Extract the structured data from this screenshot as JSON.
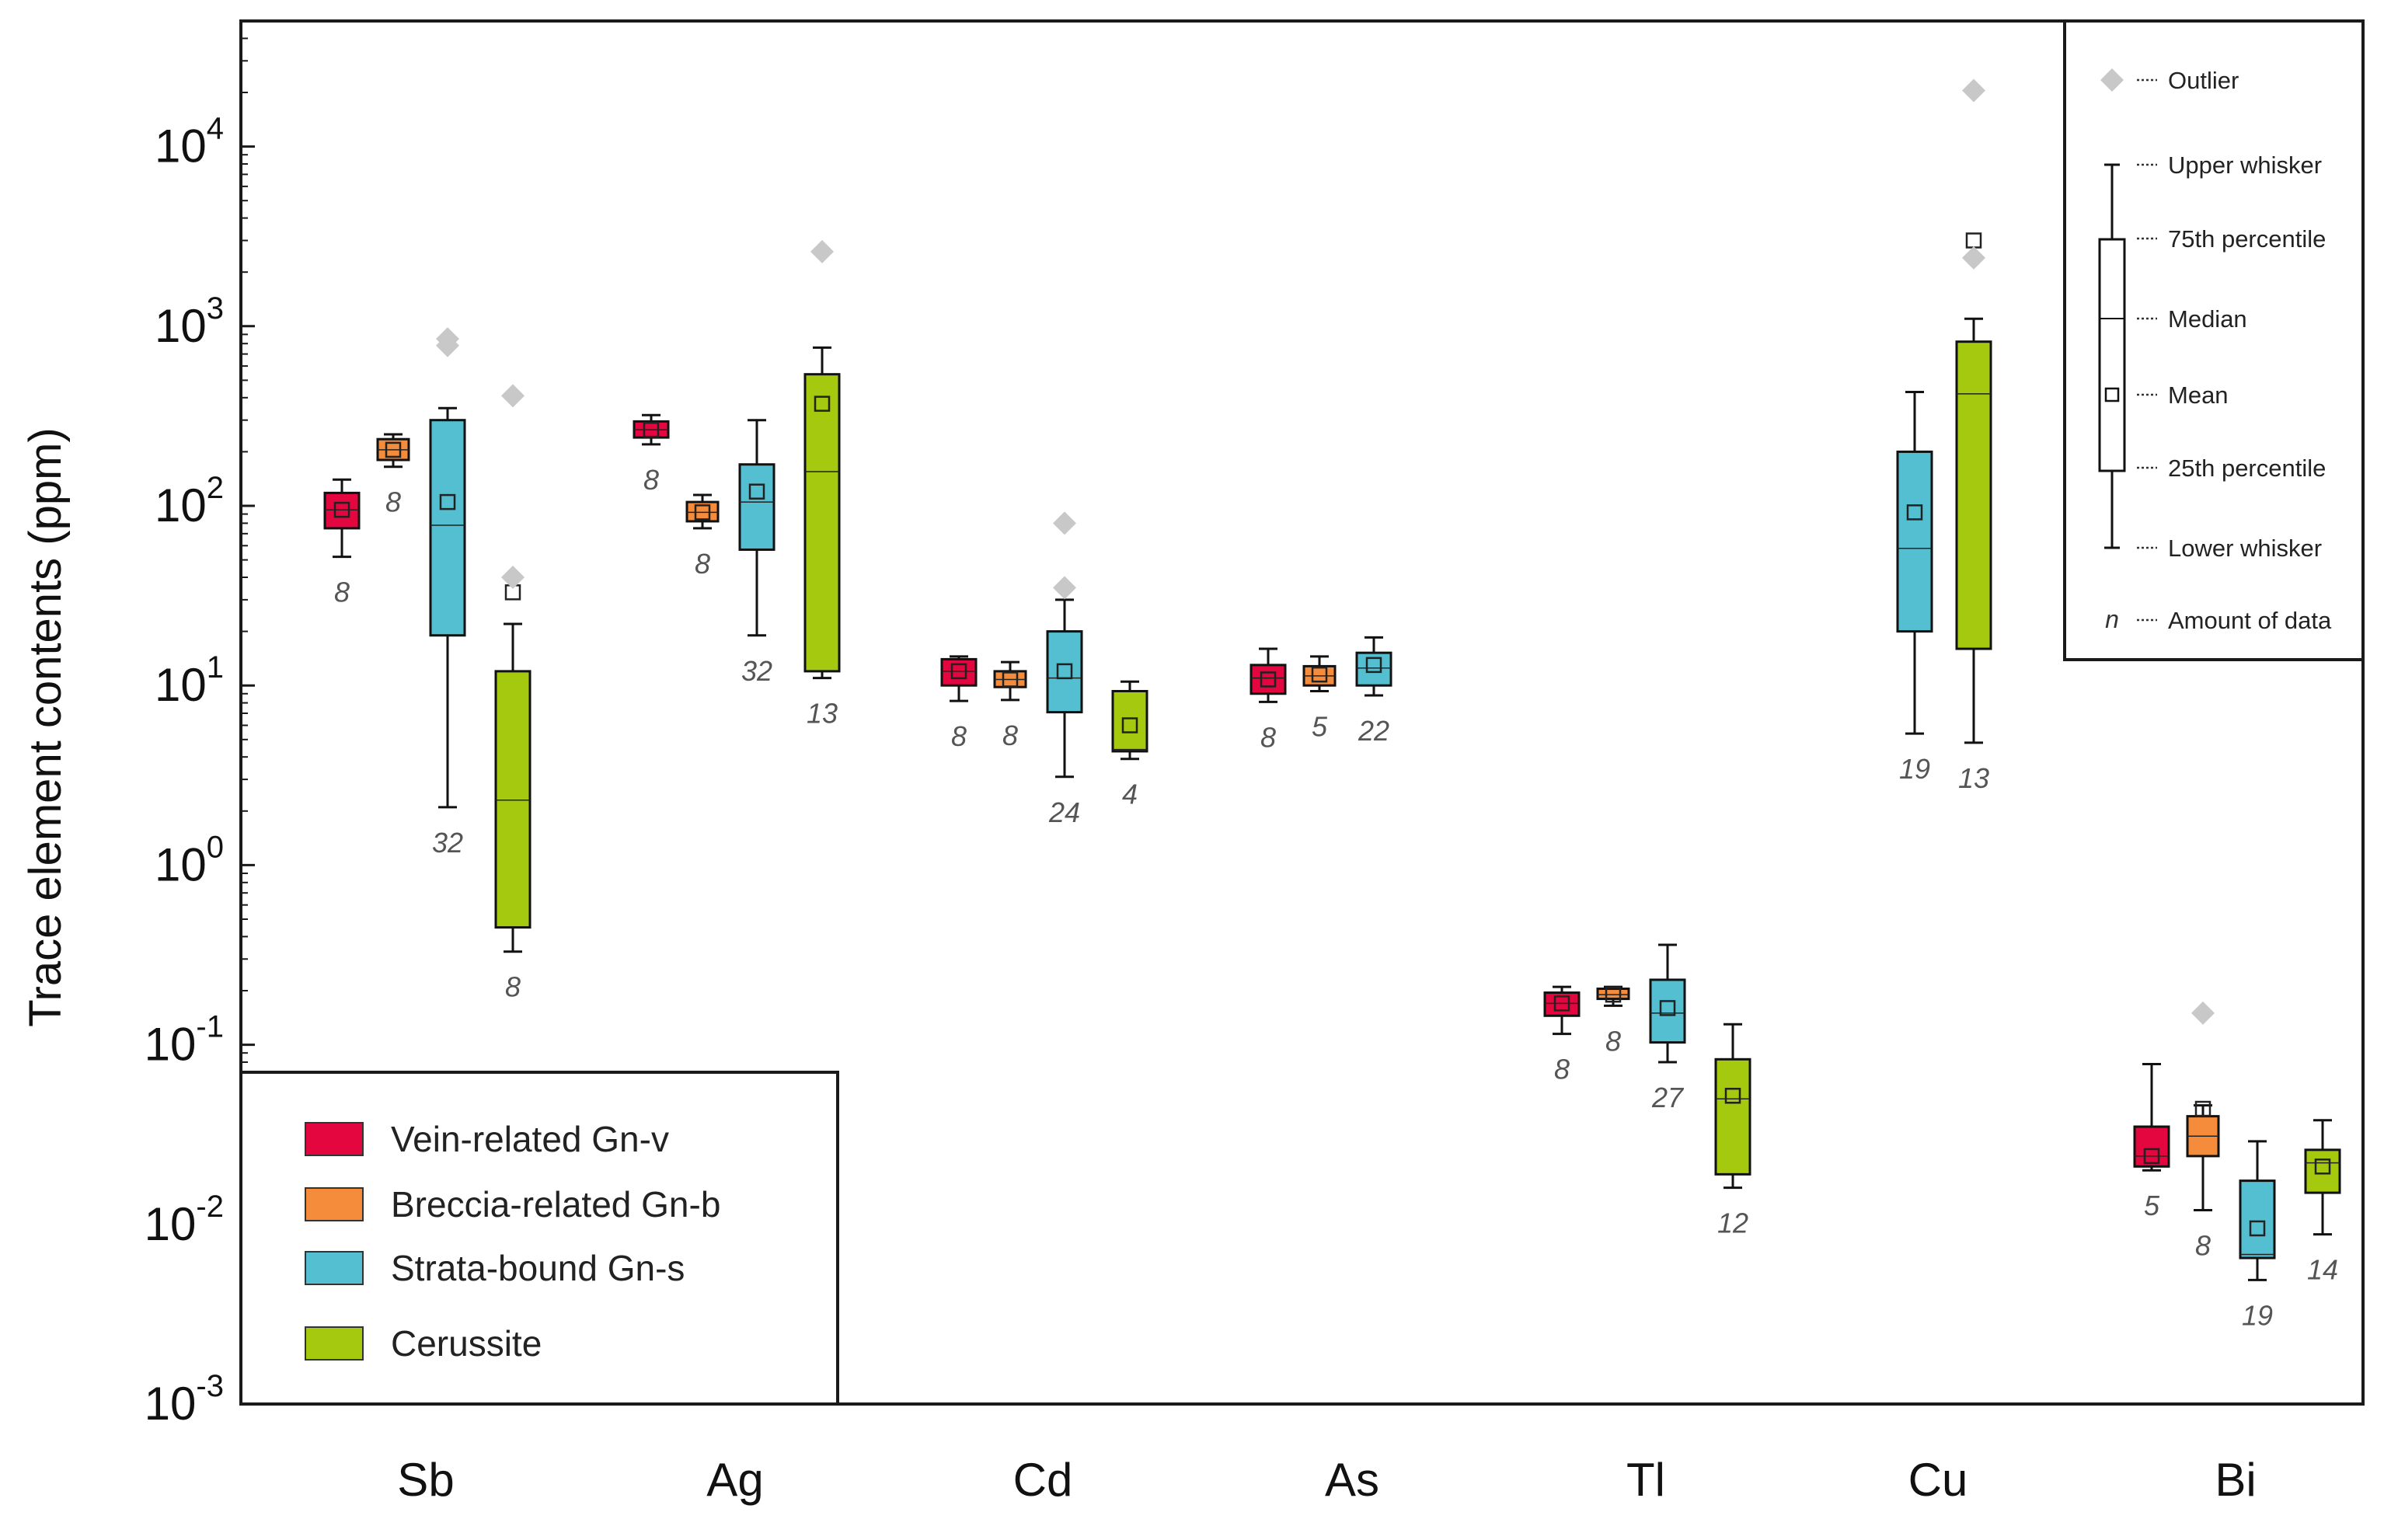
{
  "chart_data": {
    "type": "box",
    "ylabel": "Trace element contents (ppm)",
    "yscale": "log",
    "ylim": [
      0.001,
      50000
    ],
    "y_ticks": [
      {
        "base": "10",
        "exp": "-3",
        "value": 0.001
      },
      {
        "base": "10",
        "exp": "-2",
        "value": 0.01
      },
      {
        "base": "10",
        "exp": "-1",
        "value": 0.1
      },
      {
        "base": "10",
        "exp": "0",
        "value": 1
      },
      {
        "base": "10",
        "exp": "1",
        "value": 10
      },
      {
        "base": "10",
        "exp": "2",
        "value": 100
      },
      {
        "base": "10",
        "exp": "3",
        "value": 1000
      },
      {
        "base": "10",
        "exp": "4",
        "value": 10000
      }
    ],
    "categories": [
      "Sb",
      "Ag",
      "Cd",
      "As",
      "Tl",
      "Cu",
      "Bi"
    ],
    "series": [
      {
        "name": "Vein-related Gn-v",
        "color": "#e3063f"
      },
      {
        "name": "Breccia-related Gn-b",
        "color": "#f58c3c"
      },
      {
        "name": "Strata-bound Gn-s",
        "color": "#54bfd0"
      },
      {
        "name": "Cerussite",
        "color": "#a5c90f"
      }
    ],
    "boxes": [
      {
        "category": "Sb",
        "series": 0,
        "min": 52,
        "q1": 75,
        "median": 95,
        "q3": 118,
        "max": 140,
        "mean": 95,
        "n": "8",
        "outliers": []
      },
      {
        "category": "Sb",
        "series": 1,
        "min": 165,
        "q1": 180,
        "median": 205,
        "q3": 235,
        "max": 250,
        "mean": 205,
        "n": "8",
        "outliers": []
      },
      {
        "category": "Sb",
        "series": 2,
        "min": 2.1,
        "q1": 19,
        "median": 78,
        "q3": 300,
        "max": 350,
        "mean": 105,
        "n": "32",
        "outliers": [
          780,
          850
        ]
      },
      {
        "category": "Sb",
        "series": 3,
        "min": 0.33,
        "q1": 0.45,
        "median": 2.3,
        "q3": 12,
        "max": 22,
        "mean": 33,
        "n": "8",
        "outliers": [
          40,
          410
        ]
      },
      {
        "category": "Ag",
        "series": 0,
        "min": 220,
        "q1": 240,
        "median": 265,
        "q3": 295,
        "max": 320,
        "mean": 265,
        "n": "8",
        "outliers": []
      },
      {
        "category": "Ag",
        "series": 1,
        "min": 75,
        "q1": 82,
        "median": 92,
        "q3": 105,
        "max": 115,
        "mean": 92,
        "n": "8",
        "outliers": []
      },
      {
        "category": "Ag",
        "series": 2,
        "min": 19,
        "q1": 57,
        "median": 105,
        "q3": 170,
        "max": 300,
        "mean": 120,
        "n": "32",
        "outliers": []
      },
      {
        "category": "Ag",
        "series": 3,
        "min": 11,
        "q1": 12,
        "median": 155,
        "q3": 540,
        "max": 760,
        "mean": 370,
        "n": "13",
        "outliers": [
          2600
        ]
      },
      {
        "category": "Cd",
        "series": 0,
        "min": 8.2,
        "q1": 10,
        "median": 12,
        "q3": 14,
        "max": 14.5,
        "mean": 12,
        "n": "8",
        "outliers": []
      },
      {
        "category": "Cd",
        "series": 1,
        "min": 8.3,
        "q1": 9.8,
        "median": 10.8,
        "q3": 12,
        "max": 13.5,
        "mean": 10.8,
        "n": "8",
        "outliers": []
      },
      {
        "category": "Cd",
        "series": 2,
        "min": 3.1,
        "q1": 7.1,
        "median": 11,
        "q3": 20,
        "max": 30,
        "mean": 12,
        "n": "24",
        "outliers": [
          35,
          80
        ]
      },
      {
        "category": "Cd",
        "series": 3,
        "min": 3.9,
        "q1": 4.3,
        "median": 4.4,
        "q3": 9.3,
        "max": 10.5,
        "mean": 6,
        "n": "4",
        "outliers": []
      },
      {
        "category": "As",
        "series": 0,
        "min": 8.1,
        "q1": 9,
        "median": 11,
        "q3": 13,
        "max": 16,
        "mean": 10.8,
        "n": "8",
        "outliers": []
      },
      {
        "category": "As",
        "series": 1,
        "min": 9.3,
        "q1": 10,
        "median": 11.3,
        "q3": 12.8,
        "max": 14.5,
        "mean": 11.5,
        "n": "5",
        "outliers": []
      },
      {
        "category": "As",
        "series": 2,
        "min": 8.8,
        "q1": 10,
        "median": 12.5,
        "q3": 15.2,
        "max": 18.5,
        "mean": 13,
        "n": "22",
        "outliers": []
      },
      {
        "category": "Tl",
        "series": 0,
        "min": 0.115,
        "q1": 0.145,
        "median": 0.17,
        "q3": 0.195,
        "max": 0.21,
        "mean": 0.17,
        "n": "8",
        "outliers": []
      },
      {
        "category": "Tl",
        "series": 1,
        "min": 0.165,
        "q1": 0.18,
        "median": 0.19,
        "q3": 0.205,
        "max": 0.21,
        "mean": 0.19,
        "n": "8",
        "outliers": []
      },
      {
        "category": "Tl",
        "series": 2,
        "min": 0.08,
        "q1": 0.103,
        "median": 0.15,
        "q3": 0.23,
        "max": 0.36,
        "mean": 0.16,
        "n": "27",
        "outliers": []
      },
      {
        "category": "Tl",
        "series": 3,
        "min": 0.016,
        "q1": 0.019,
        "median": 0.05,
        "q3": 0.083,
        "max": 0.13,
        "mean": 0.052,
        "n": "12",
        "outliers": []
      },
      {
        "category": "Cu",
        "series": 2,
        "min": 5.4,
        "q1": 20,
        "median": 58,
        "q3": 200,
        "max": 430,
        "mean": 92,
        "n": "19",
        "outliers": []
      },
      {
        "category": "Cu",
        "series": 3,
        "min": 4.8,
        "q1": 16,
        "median": 420,
        "q3": 820,
        "max": 1100,
        "mean": 3000,
        "n": "13",
        "outliers": [
          2400,
          20500
        ]
      },
      {
        "category": "Bi",
        "series": 0,
        "min": 0.02,
        "q1": 0.021,
        "median": 0.024,
        "q3": 0.035,
        "max": 0.078,
        "mean": 0.024,
        "n": "5",
        "outliers": []
      },
      {
        "category": "Bi",
        "series": 1,
        "min": 0.012,
        "q1": 0.024,
        "median": 0.031,
        "q3": 0.04,
        "max": 0.046,
        "mean": 0.044,
        "n": "8",
        "outliers": [
          0.15
        ]
      },
      {
        "category": "Bi",
        "series": 2,
        "min": 0.0049,
        "q1": 0.0065,
        "median": 0.0068,
        "q3": 0.0175,
        "max": 0.029,
        "mean": 0.0095,
        "n": "19",
        "outliers": []
      },
      {
        "category": "Bi",
        "series": 3,
        "min": 0.0088,
        "q1": 0.015,
        "median": 0.022,
        "q3": 0.026,
        "max": 0.038,
        "mean": 0.021,
        "n": "14",
        "outliers": []
      }
    ],
    "legend": {
      "placement": "bottom-left"
    },
    "key": {
      "placement": "top-right",
      "items": {
        "outlier": "Outlier",
        "upper_whisker": "Upper whisker",
        "p75": "75th percentile",
        "median": "Median",
        "mean": "Mean",
        "p25": "25th percentile",
        "lower_whisker": "Lower whisker",
        "n_symbol": "n",
        "n": "Amount of data"
      }
    }
  }
}
